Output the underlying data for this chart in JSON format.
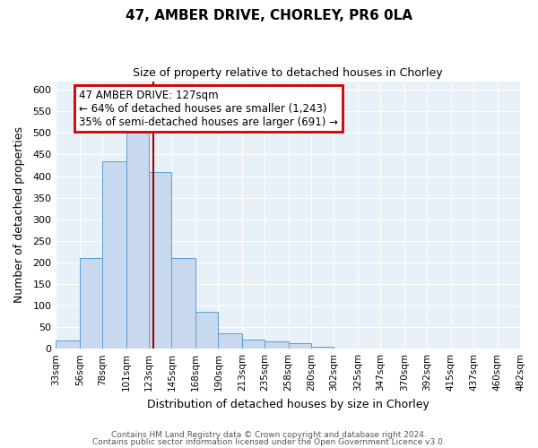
{
  "title1": "47, AMBER DRIVE, CHORLEY, PR6 0LA",
  "title2": "Size of property relative to detached houses in Chorley",
  "xlabel": "Distribution of detached houses by size in Chorley",
  "ylabel": "Number of detached properties",
  "footer1": "Contains HM Land Registry data © Crown copyright and database right 2024.",
  "footer2": "Contains public sector information licensed under the Open Government Licence v3.0.",
  "annotation_title": "47 AMBER DRIVE: 127sqm",
  "annotation_line1": "← 64% of detached houses are smaller (1,243)",
  "annotation_line2": "35% of semi-detached houses are larger (691) →",
  "bar_edges": [
    33,
    56,
    78,
    101,
    123,
    145,
    168,
    190,
    213,
    235,
    258,
    280,
    302,
    325,
    347,
    370,
    392,
    415,
    437,
    460,
    482
  ],
  "bar_heights": [
    20,
    210,
    435,
    500,
    410,
    210,
    85,
    35,
    22,
    18,
    13,
    5,
    1,
    0,
    0,
    0,
    0,
    0,
    0,
    0,
    2
  ],
  "bar_color": "#c8d9ef",
  "bar_edge_color": "#5a9fd4",
  "property_line_x": 127,
  "ylim": [
    0,
    620
  ],
  "xlim": [
    33,
    482
  ],
  "bg_color": "#ffffff",
  "plot_bg_color": "#e8f0f8",
  "grid_color": "#ffffff",
  "annotation_box_color": "#ffffff",
  "annotation_box_edge": "#cc0000",
  "property_line_color": "#aa0000"
}
